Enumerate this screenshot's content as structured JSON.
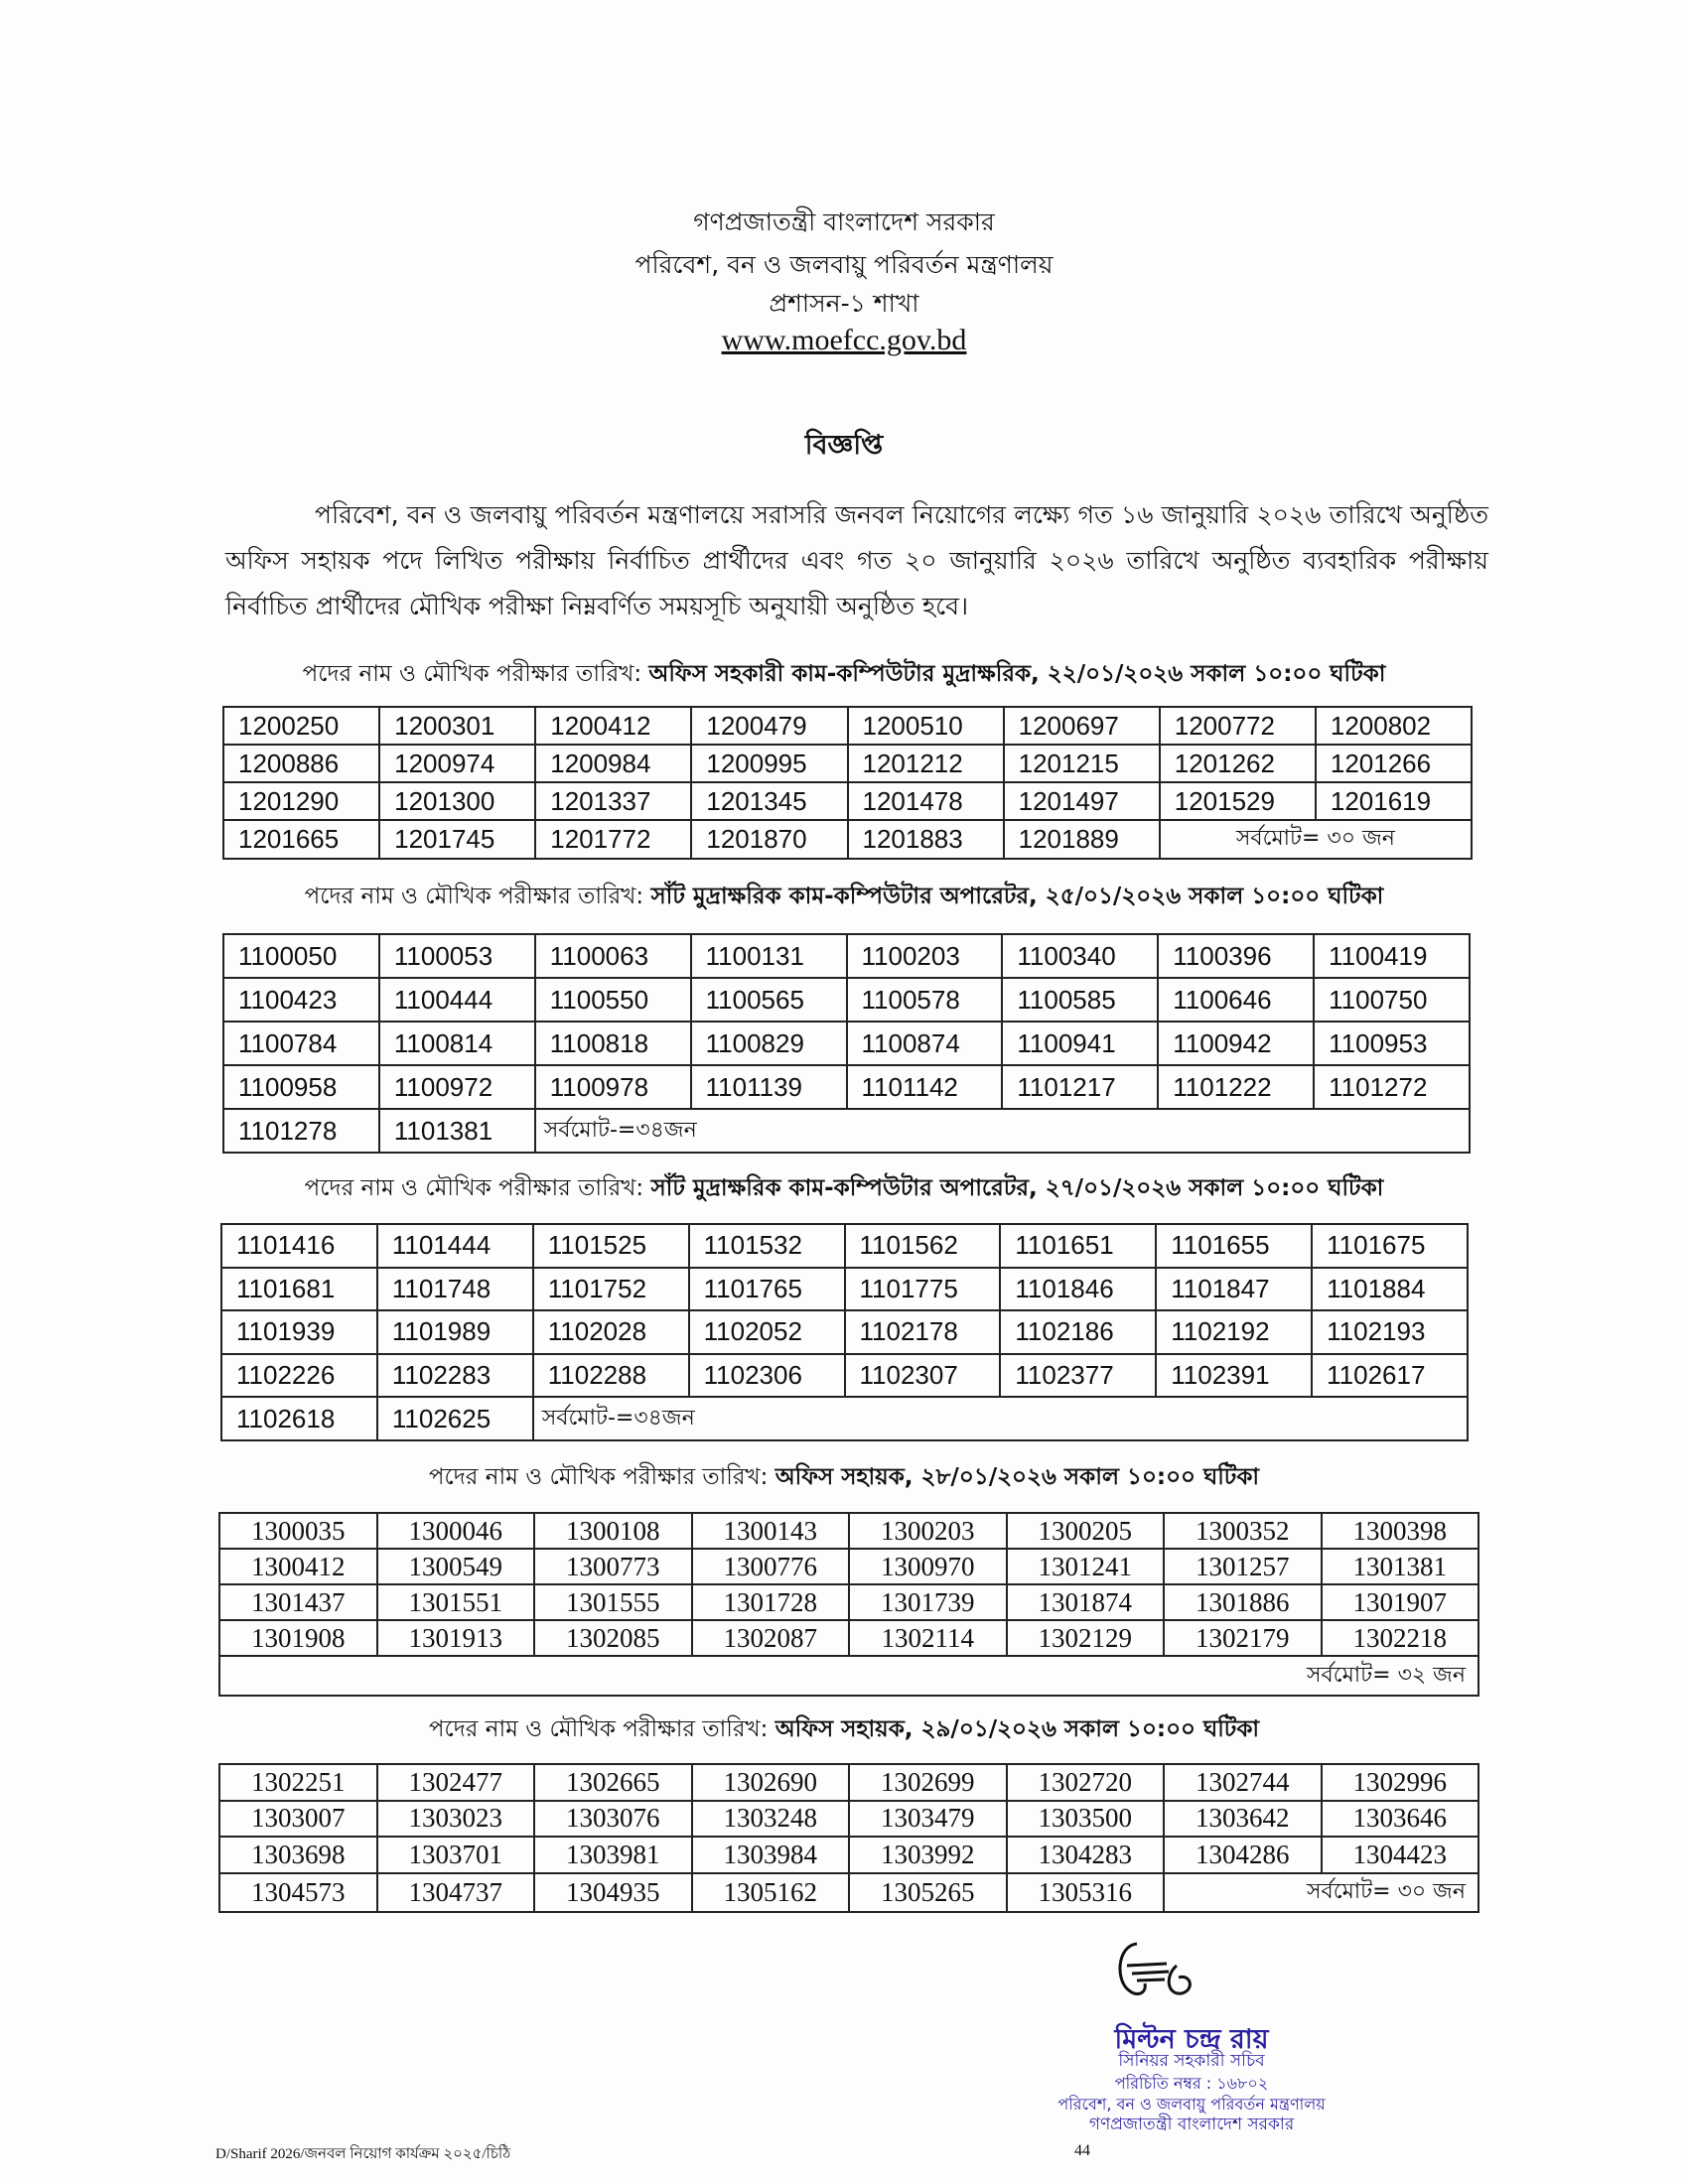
{
  "header": {
    "line1": "গণপ্রজাতন্ত্রী বাংলাদেশ সরকার",
    "line2": "পরিবেশ, বন ও জলবায়ু পরিবর্তন মন্ত্রণালয়",
    "line3": "প্রশাসন-১ শাখা",
    "url": "www.moefcc.gov.bd"
  },
  "title": "বিজ্ঞপ্তি",
  "paragraph": "পরিবেশ, বন ও জলবায়ু পরিবর্তন মন্ত্রণালয়ে সরাসরি জনবল নিয়োগের লক্ষ্যে গত ১৬ জানুয়ারি ২০২৬ তারিখে অনুষ্ঠিত অফিস সহায়ক পদে লিখিত পরীক্ষায় নির্বাচিত প্রার্থীদের এবং গত ২০ জানুয়ারি ২০২৬ তারিখে অনুষ্ঠিত ব্যবহারিক পরীক্ষায় নির্বাচিত প্রার্থীদের মৌখিক পরীক্ষা নিম্নবর্ণিত সময়সূচি অনুযায়ী অনুষ্ঠিত হবে।",
  "sections": [
    {
      "heading_prefix": "পদের নাম ও মৌখিক পরীক্ষার তারিখ: ",
      "heading_bold": "অফিস সহকারী কাম-কম্পিউটার মুদ্রাক্ষরিক, ২২/০১/২০২৬ সকাল ১০:০০ ঘটিকা",
      "rows": [
        [
          "1200250",
          "1200301",
          "1200412",
          "1200479",
          "1200510",
          "1200697",
          "1200772",
          "1200802"
        ],
        [
          "1200886",
          "1200974",
          "1200984",
          "1200995",
          "1201212",
          "1201215",
          "1201262",
          "1201266"
        ],
        [
          "1201290",
          "1201300",
          "1201337",
          "1201345",
          "1201478",
          "1201497",
          "1201529",
          "1201619"
        ],
        [
          "1201665",
          "1201745",
          "1201772",
          "1201870",
          "1201883",
          "1201889"
        ]
      ],
      "total": "সর্বমোট= ৩০ জন"
    },
    {
      "heading_prefix": "পদের নাম ও মৌখিক পরীক্ষার তারিখ: ",
      "heading_bold": "সাঁট মুদ্রাক্ষরিক কাম-কম্পিউটার অপারেটর, ২৫/০১/২০২৬ সকাল ১০:০০ ঘটিকা",
      "rows": [
        [
          "1100050",
          "1100053",
          "1100063",
          "1100131",
          "1100203",
          "1100340",
          "1100396",
          "1100419"
        ],
        [
          "1100423",
          "1100444",
          "1100550",
          "1100565",
          "1100578",
          "1100585",
          "1100646",
          "1100750"
        ],
        [
          "1100784",
          "1100814",
          "1100818",
          "1100829",
          "1100874",
          "1100941",
          "1100942",
          "1100953"
        ],
        [
          "1100958",
          "1100972",
          "1100978",
          "1101139",
          "1101142",
          "1101217",
          "1101222",
          "1101272"
        ],
        [
          "1101278",
          "1101381"
        ]
      ],
      "total": "সর্বমোট-=৩৪জন"
    },
    {
      "heading_prefix": "পদের নাম ও মৌখিক পরীক্ষার তারিখ: ",
      "heading_bold": "সাঁট মুদ্রাক্ষরিক কাম-কম্পিউটার অপারেটর, ২৭/০১/২০২৬ সকাল ১০:০০ ঘটিকা",
      "rows": [
        [
          "1101416",
          "1101444",
          "1101525",
          "1101532",
          "1101562",
          "1101651",
          "1101655",
          "1101675"
        ],
        [
          "1101681",
          "1101748",
          "1101752",
          "1101765",
          "1101775",
          "1101846",
          "1101847",
          "1101884"
        ],
        [
          "1101939",
          "1101989",
          "1102028",
          "1102052",
          "1102178",
          "1102186",
          "1102192",
          "1102193"
        ],
        [
          "1102226",
          "1102283",
          "1102288",
          "1102306",
          "1102307",
          "1102377",
          "1102391",
          "1102617"
        ],
        [
          "1102618",
          "1102625"
        ]
      ],
      "total": "সর্বমোট-=৩৪জন"
    },
    {
      "heading_prefix": "পদের নাম ও মৌখিক পরীক্ষার তারিখ: ",
      "heading_bold": "অফিস সহায়ক, ২৮/০১/২০২৬ সকাল ১০:০০ ঘটিকা",
      "rows": [
        [
          "1300035",
          "1300046",
          "1300108",
          "1300143",
          "1300203",
          "1300205",
          "1300352",
          "1300398"
        ],
        [
          "1300412",
          "1300549",
          "1300773",
          "1300776",
          "1300970",
          "1301241",
          "1301257",
          "1301381"
        ],
        [
          "1301437",
          "1301551",
          "1301555",
          "1301728",
          "1301739",
          "1301874",
          "1301886",
          "1301907"
        ],
        [
          "1301908",
          "1301913",
          "1302085",
          "1302087",
          "1302114",
          "1302129",
          "1302179",
          "1302218"
        ],
        []
      ],
      "total": "সর্বমোট= ৩২ জন"
    },
    {
      "heading_prefix": "পদের নাম ও মৌখিক পরীক্ষার তারিখ: ",
      "heading_bold": "অফিস সহায়ক, ২৯/০১/২০২৬ সকাল ১০:০০ ঘটিকা",
      "rows": [
        [
          "1302251",
          "1302477",
          "1302665",
          "1302690",
          "1302699",
          "1302720",
          "1302744",
          "1302996"
        ],
        [
          "1303007",
          "1303023",
          "1303076",
          "1303248",
          "1303479",
          "1303500",
          "1303642",
          "1303646"
        ],
        [
          "1303698",
          "1303701",
          "1303981",
          "1303984",
          "1303992",
          "1304283",
          "1304286",
          "1304423"
        ],
        [
          "1304573",
          "1304737",
          "1304935",
          "1305162",
          "1305265",
          "1305316"
        ]
      ],
      "total": "সর্বমোট= ৩০ জন"
    }
  ],
  "signature": {
    "signature_text": "Signature",
    "name": "মিল্টন চন্দ্র রায়",
    "designation": "সিনিয়র সহকারী সচিব",
    "id_number": "পরিচিতি নম্বর : ১৬৮০২",
    "ministry": "পরিবেশ, বন ও জলবায়ু পরিবর্তন মন্ত্রণালয়",
    "government": "গণপ্রজাতন্ত্রী বাংলাদেশ সরকার",
    "ink_color": "#2a1fa0"
  },
  "footer": {
    "reference": "D/Sharif 2026/জনবল নিয়োগ কার্যক্রম ২০২৫/চিঠি",
    "page_number": "44"
  }
}
